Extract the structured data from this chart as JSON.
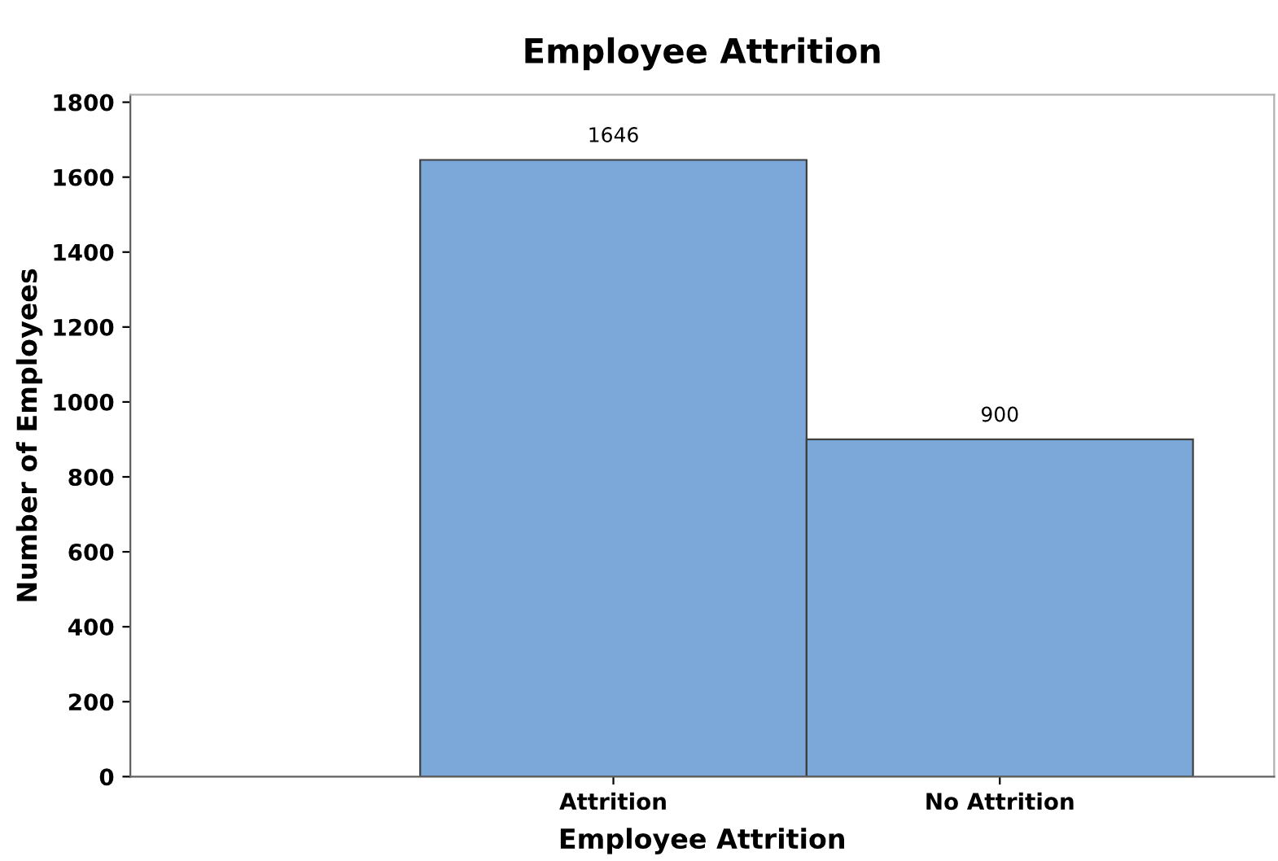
{
  "chart_data": {
    "type": "bar",
    "title": "Employee Attrition",
    "xlabel": "Employee Attrition",
    "ylabel": "Number of Employees",
    "categories": [
      "Attrition",
      "No Attrition"
    ],
    "values": [
      1646,
      900
    ],
    "color": "#7ba7d9",
    "ylim": [
      0,
      1820
    ],
    "yticks": [
      0,
      200,
      400,
      600,
      800,
      1000,
      1200,
      1400,
      1600,
      1800
    ],
    "data_labels": true,
    "grid": false,
    "legend": false
  }
}
